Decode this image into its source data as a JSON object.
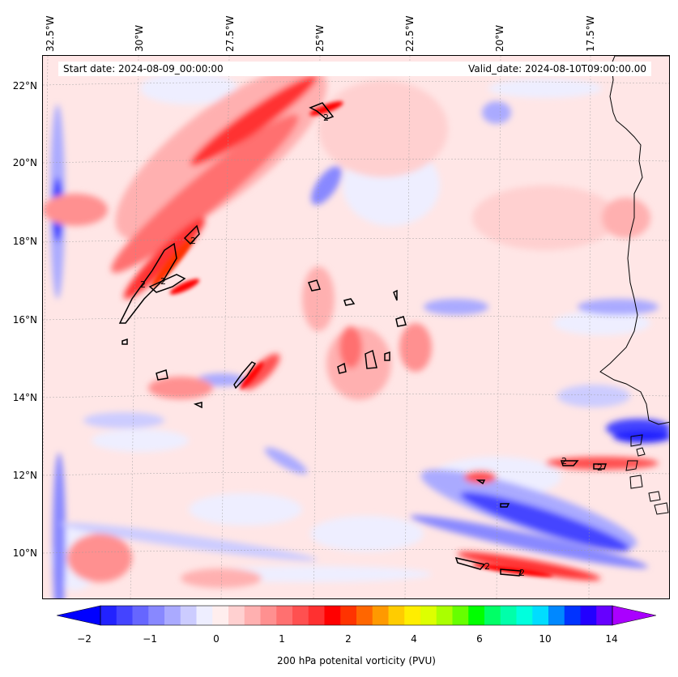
{
  "map": {
    "start_date": "Start date: 2024-08-09_00:00:00",
    "valid_date": "Valid_date: 2024-08-10T09:00:00.00",
    "lon_labels": [
      "32.5°W",
      "30°W",
      "27.5°W",
      "25°W",
      "22.5°W",
      "20°W",
      "17.5°W"
    ],
    "lat_labels": [
      "22°N",
      "20°N",
      "18°N",
      "16°N",
      "14°N",
      "12°N",
      "10°N"
    ],
    "contour_labels": [
      "2",
      "2",
      "2",
      "2",
      "2",
      "2",
      "2",
      "2"
    ],
    "grid": true,
    "projection": "Lambert-like",
    "contour_level": 2
  },
  "colorbar": {
    "title": "200 hPa potenital vorticity (PVU)",
    "ticks": [
      "−2",
      "−1",
      "0",
      "1",
      "2",
      "4",
      "6",
      "10",
      "14"
    ],
    "colors": [
      "#0000ff",
      "#2222ff",
      "#4444ff",
      "#6666ff",
      "#8888ff",
      "#aaaaff",
      "#ccccff",
      "#eeeeff",
      "#ffeeee",
      "#ffd0d0",
      "#ffb0b0",
      "#ff9090",
      "#ff7070",
      "#ff5050",
      "#ff3030",
      "#ff0000",
      "#ff3300",
      "#ff6600",
      "#ff9900",
      "#ffcc00",
      "#ffee00",
      "#ddff00",
      "#aaff00",
      "#66ff00",
      "#00ff00",
      "#00ff66",
      "#00ffaa",
      "#00ffdd",
      "#00ddff",
      "#0088ff",
      "#0033ff",
      "#2200ff",
      "#6600ff",
      "#aa00ff"
    ],
    "extend": "both"
  }
}
